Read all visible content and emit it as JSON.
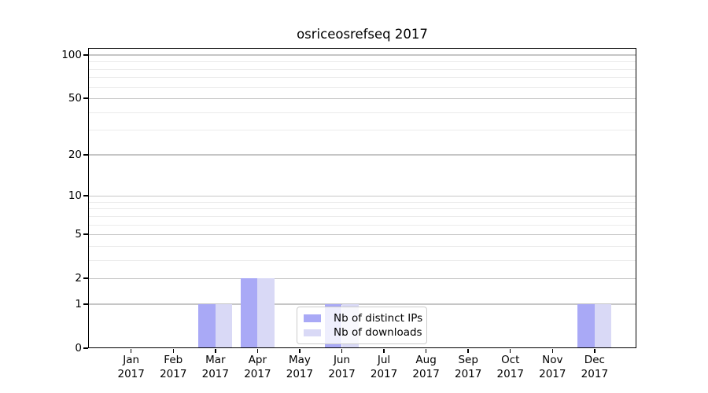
{
  "figure": {
    "background": "#ffffff"
  },
  "chart_data": {
    "type": "bar",
    "title": "osriceosrefseq 2017",
    "categories": [
      "Jan",
      "Feb",
      "Mar",
      "Apr",
      "May",
      "Jun",
      "Jul",
      "Aug",
      "Sep",
      "Oct",
      "Nov",
      "Dec"
    ],
    "category_year_line": "2017",
    "series": [
      {
        "name": "Nb of distinct IPs",
        "color": "#a9a9f6",
        "values": [
          0,
          0,
          1,
          2,
          0,
          1,
          0,
          0,
          0,
          0,
          0,
          1
        ]
      },
      {
        "name": "Nb of downloads",
        "color": "#d9d9f6",
        "values": [
          0,
          0,
          1,
          2,
          0,
          1,
          0,
          0,
          0,
          0,
          0,
          1
        ]
      }
    ],
    "xlabel": "",
    "ylabel": "",
    "yscale": "log1p",
    "ylim": [
      0,
      112
    ],
    "yticks": [
      100,
      50,
      20,
      10,
      5,
      2,
      1,
      0
    ],
    "yticks_minor": [
      3,
      4,
      6,
      7,
      8,
      9,
      30,
      40,
      60,
      70,
      80,
      90
    ],
    "grid": "horizontal",
    "legend_position": "lower center"
  },
  "colors": {
    "grid_major": "#c6c6c6",
    "grid_minor": "#ebebeb",
    "axis": "#000000",
    "legend_border": "#cccccc",
    "legend_background": "rgba(255,255,255,0.8)"
  }
}
